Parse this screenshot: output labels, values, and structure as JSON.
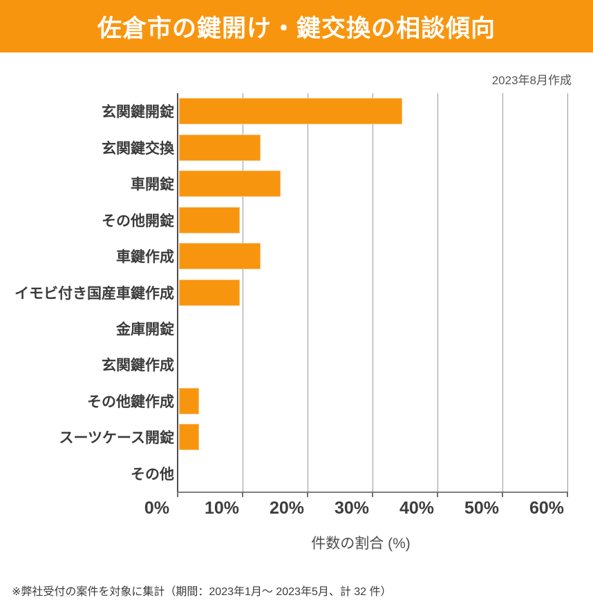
{
  "header": {
    "title": "佐倉市の鍵開け・鍵交換の相談傾向",
    "background_color": "#F8950F",
    "text_color": "#FFFFFF"
  },
  "meta": {
    "created": "2023年8月作成"
  },
  "chart_data": {
    "type": "bar",
    "orientation": "horizontal",
    "title": "佐倉市の鍵開け・鍵交換の相談傾向",
    "categories": [
      "玄関鍵開錠",
      "玄関鍵交換",
      "車開錠",
      "その他開錠",
      "車鍵作成",
      "イモビ付き国産車鍵作成",
      "金庫開錠",
      "玄関鍵作成",
      "その他鍵作成",
      "スーツケース開錠",
      "その他"
    ],
    "values": [
      34.4,
      12.5,
      15.6,
      9.4,
      12.5,
      9.4,
      0,
      0,
      3.1,
      3.1,
      0
    ],
    "unit": "%",
    "xlabel": "件数の割合 (%)",
    "ylabel": "",
    "xlim": [
      0,
      60
    ],
    "x_ticks": [
      "0%",
      "10%",
      "20%",
      "30%",
      "40%",
      "50%",
      "60%"
    ],
    "grid": "vertical-only",
    "legend": "none",
    "bar_color": "#F8950F"
  },
  "footnote": {
    "text": "※弊社受付の案件を対象に集計（期間：2023年1月～ 2023年5月、計 32 件）"
  }
}
